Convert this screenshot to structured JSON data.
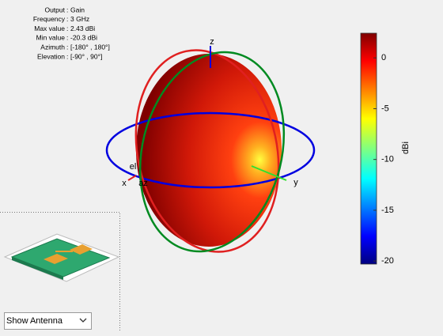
{
  "info": {
    "rows": [
      {
        "label": "Output",
        "value": "Gain"
      },
      {
        "label": "Frequency",
        "value": "3 GHz"
      },
      {
        "label": "Max value",
        "value": "2.43 dBi"
      },
      {
        "label": "Min value",
        "value": "-20.3 dBi"
      },
      {
        "label": "Azimuth",
        "value": "[-180° , 180°]"
      },
      {
        "label": "Elevation",
        "value": "[-90° , 90°]"
      }
    ]
  },
  "axes": {
    "x": "x",
    "y": "y",
    "z": "z",
    "el": "el",
    "az": "az"
  },
  "colorbar": {
    "label": "dBi",
    "clim": [
      -20.3,
      2.43
    ],
    "ticks": [
      0,
      -5,
      -10,
      -15,
      -20
    ]
  },
  "dropdown": {
    "selected": "Show Antenna"
  }
}
